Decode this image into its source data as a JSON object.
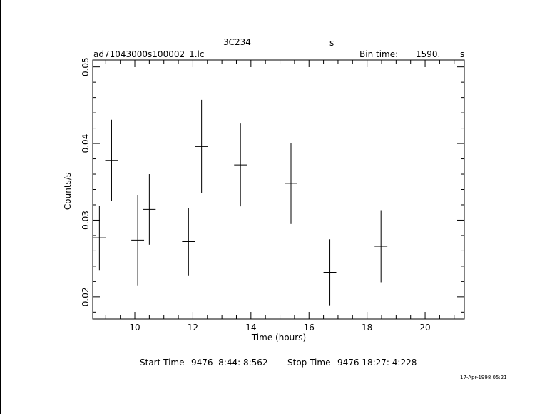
{
  "header": {
    "object": "3C234",
    "object_unit": "s",
    "filename": "ad71043000s100002_1.lc",
    "bin_label": "Bin time:",
    "bin_value": "1590.",
    "bin_unit": "s"
  },
  "footer": {
    "start_label": "Start Time",
    "start_value": "9476  8:44: 8:562",
    "stop_label": "Stop Time",
    "stop_value": "9476 18:27: 4:228",
    "timestamp": "17-Apr-1998 05:21"
  },
  "chart_data": {
    "type": "scatter",
    "xlabel": "Time (hours)",
    "ylabel": "Counts/s",
    "xlim": [
      8.55,
      21.35
    ],
    "ylim": [
      0.0171,
      0.0509
    ],
    "x_ticks": [
      10,
      12,
      14,
      16,
      18,
      20
    ],
    "y_ticks": [
      0.02,
      0.03,
      0.04,
      0.05
    ],
    "x_tick_labels": [
      "10",
      "12",
      "14",
      "16",
      "18",
      "20"
    ],
    "y_tick_labels": [
      "0.02",
      "0.03",
      "0.04",
      "0.05"
    ],
    "x_minor_step": 0.5,
    "y_minor_step": 0.002,
    "grid": false,
    "points": [
      {
        "x": 8.78,
        "xerr": 0.22,
        "y": 0.0277,
        "yerr": 0.0042
      },
      {
        "x": 9.2,
        "xerr": 0.22,
        "y": 0.0378,
        "yerr": 0.0053
      },
      {
        "x": 10.1,
        "xerr": 0.22,
        "y": 0.0274,
        "yerr": 0.0059
      },
      {
        "x": 10.5,
        "xerr": 0.22,
        "y": 0.0314,
        "yerr": 0.0046
      },
      {
        "x": 11.85,
        "xerr": 0.22,
        "y": 0.0272,
        "yerr": 0.0044
      },
      {
        "x": 12.3,
        "xerr": 0.22,
        "y": 0.0396,
        "yerr": 0.0061
      },
      {
        "x": 13.64,
        "xerr": 0.22,
        "y": 0.0372,
        "yerr": 0.0054
      },
      {
        "x": 15.38,
        "xerr": 0.22,
        "y": 0.0348,
        "yerr": 0.0053
      },
      {
        "x": 16.72,
        "xerr": 0.22,
        "y": 0.0232,
        "yerr": 0.0043
      },
      {
        "x": 18.48,
        "xerr": 0.22,
        "y": 0.0266,
        "yerr": 0.0047
      }
    ]
  }
}
